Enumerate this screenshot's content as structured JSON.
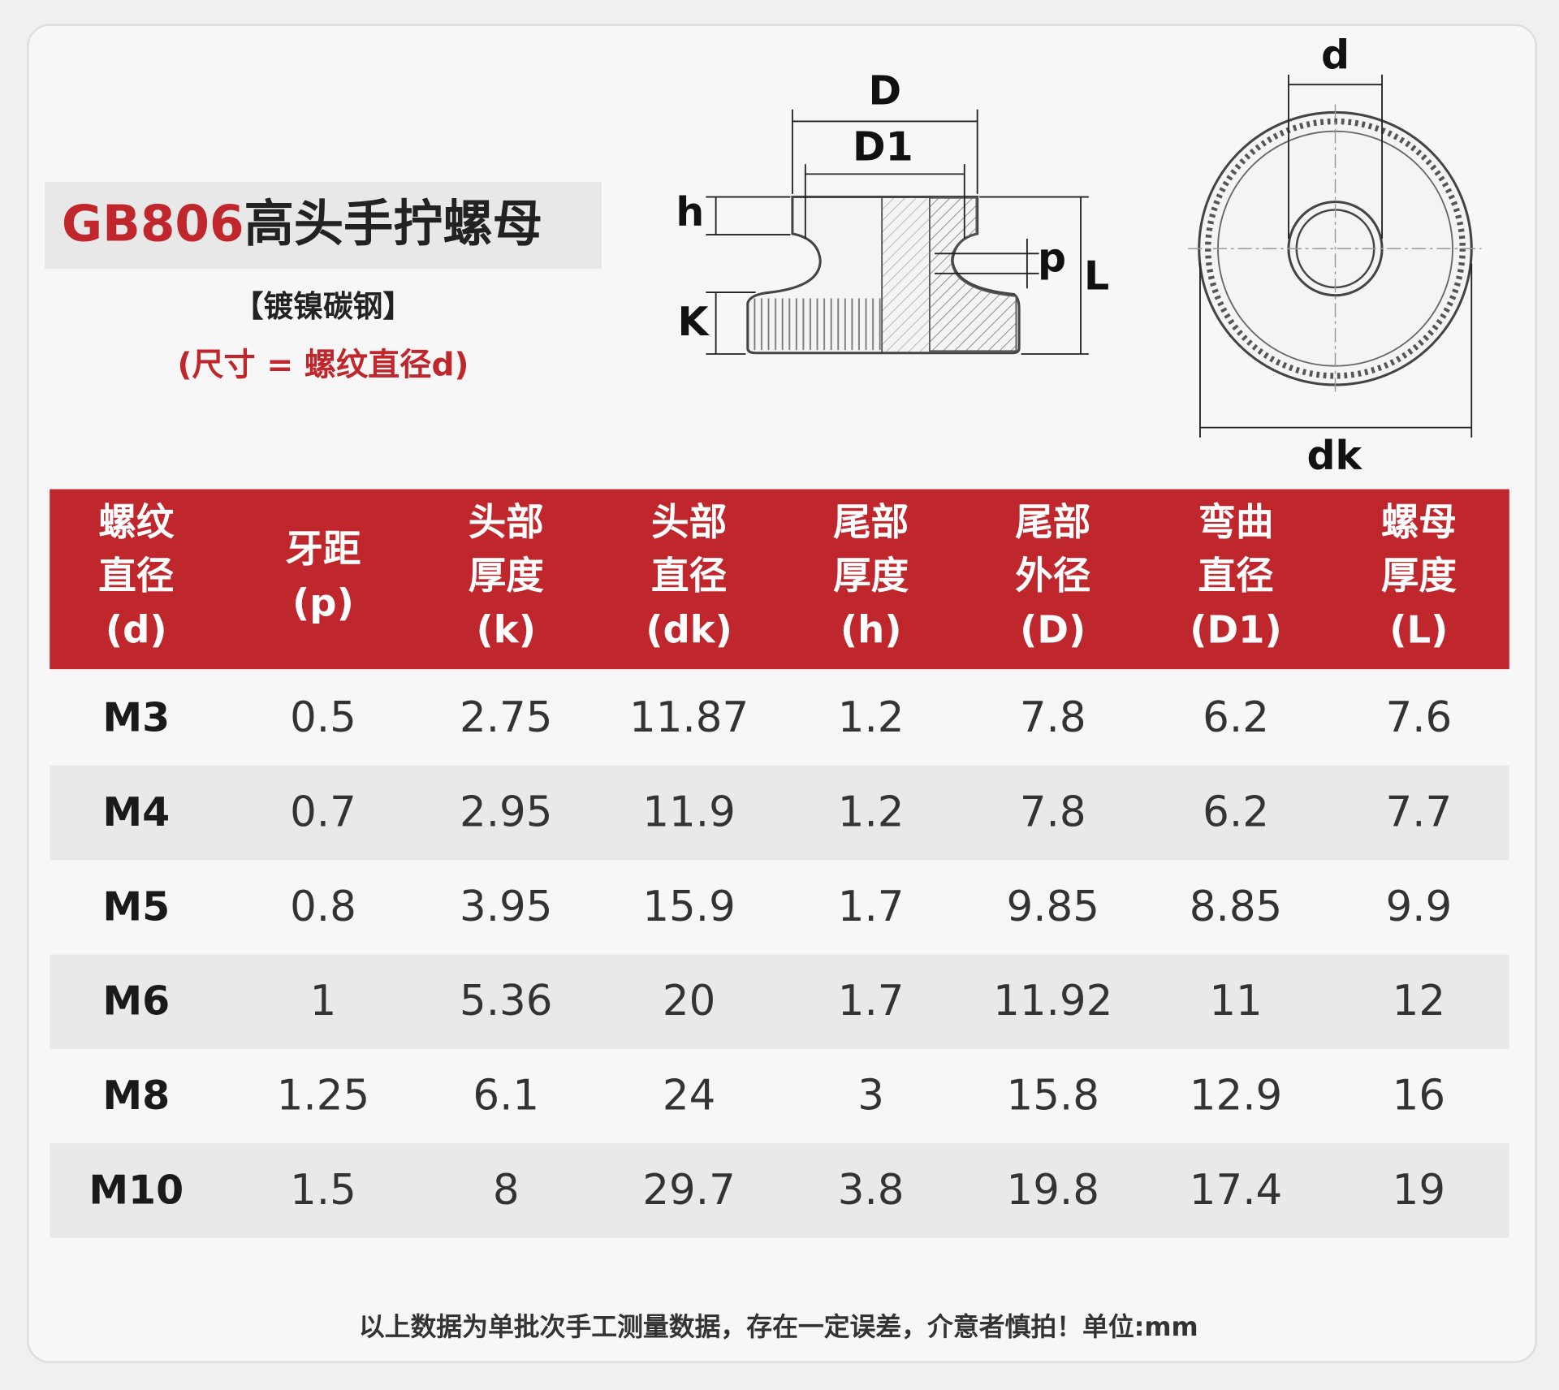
{
  "header": {
    "code": "GB806",
    "name": "高头手拧螺母",
    "material": "【镀镍碳钢】",
    "note": "(尺寸 = 螺纹直径d)"
  },
  "diagram": {
    "labels": [
      "D",
      "D1",
      "h",
      "p",
      "L",
      "K",
      "d",
      "dk"
    ]
  },
  "table": {
    "columns": [
      [
        "螺纹",
        "直径",
        "(d)"
      ],
      [
        "牙距",
        "(p)"
      ],
      [
        "头部",
        "厚度",
        "(k)"
      ],
      [
        "头部",
        "直径",
        "(dk)"
      ],
      [
        "尾部",
        "厚度",
        "(h)"
      ],
      [
        "尾部",
        "外径",
        "(D)"
      ],
      [
        "弯曲",
        "直径",
        "(D1)"
      ],
      [
        "螺母",
        "厚度",
        "(L)"
      ]
    ],
    "rows": [
      [
        "M3",
        0.5,
        2.75,
        11.87,
        1.2,
        7.8,
        6.2,
        7.6
      ],
      [
        "M4",
        0.7,
        2.95,
        11.9,
        1.2,
        7.8,
        6.2,
        7.7
      ],
      [
        "M5",
        0.8,
        3.95,
        15.9,
        1.7,
        9.85,
        8.85,
        9.9
      ],
      [
        "M6",
        1,
        5.36,
        20,
        1.7,
        11.92,
        11,
        12
      ],
      [
        "M8",
        1.25,
        6.1,
        24,
        3,
        15.8,
        12.9,
        16
      ],
      [
        "M10",
        1.5,
        8,
        29.7,
        3.8,
        19.8,
        17.4,
        19
      ]
    ]
  },
  "footer": "以上数据为单批次手工测量数据，存在一定误差，介意者慎拍！单位:mm"
}
